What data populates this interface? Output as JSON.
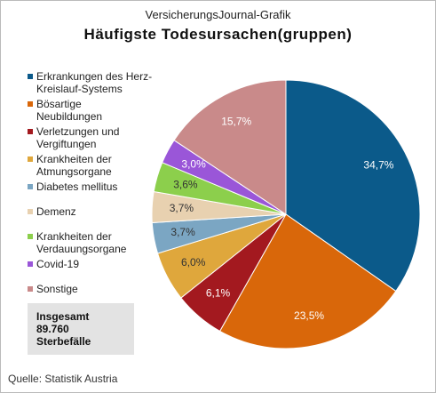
{
  "chart_data": {
    "type": "pie",
    "header": "VersicherungsJournal-Grafik",
    "title": "Häufigste Todesursachen(gruppen)",
    "categories": [
      "Erkrankungen des Herz-\nKreislauf-Systems",
      "Bösartige\nNeubildungen",
      "Verletzungen und\nVergiftungen",
      "Krankheiten der\nAtmungsorgane",
      "Diabetes mellitus",
      "Demenz",
      "Krankheiten der\nVerdauungsorgane",
      "Covid-19",
      "Sonstige"
    ],
    "values": [
      34.7,
      23.5,
      6.1,
      6.0,
      3.7,
      3.7,
      3.6,
      3.0,
      15.7
    ],
    "value_labels": [
      "34,7%",
      "23,5%",
      "6,1%",
      "6,0%",
      "3,7%",
      "3,7%",
      "3,6%",
      "3,0%",
      "15,7%"
    ],
    "colors": [
      "#0b5a8a",
      "#d9670a",
      "#a3191f",
      "#dfa73c",
      "#7ba6c3",
      "#e8d1b0",
      "#8ccf4c",
      "#9a56d8",
      "#c98a8a"
    ],
    "label_colors": [
      "#ffffff",
      "#ffffff",
      "#ffffff",
      "#333333",
      "#333333",
      "#333333",
      "#333333",
      "#ffffff",
      "#ffffff"
    ],
    "annotation": "Insgesamt\n89.760\nSterbefälle",
    "source": "Quelle: Statistik Austria"
  }
}
